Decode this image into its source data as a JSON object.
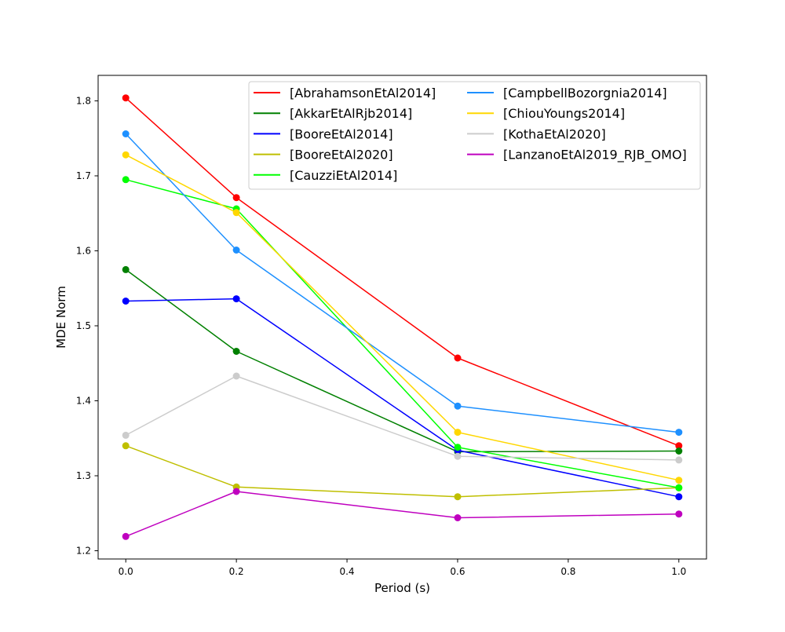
{
  "chart_data": {
    "type": "line",
    "title": "",
    "xlabel": "Period (s)",
    "ylabel": "MDE Norm",
    "xlim": [
      -0.05,
      1.05
    ],
    "ylim": [
      1.189,
      1.834
    ],
    "xticks": [
      0.0,
      0.2,
      0.4,
      0.6,
      0.8,
      1.0
    ],
    "xtick_labels": [
      "0.0",
      "0.2",
      "0.4",
      "0.6",
      "0.8",
      "1.0"
    ],
    "yticks": [
      1.2,
      1.3,
      1.4,
      1.5,
      1.6,
      1.7,
      1.8
    ],
    "ytick_labels": [
      "1.2",
      "1.3",
      "1.4",
      "1.5",
      "1.6",
      "1.7",
      "1.8"
    ],
    "grid": false,
    "legend_placement": "top-right",
    "x": [
      0.0,
      0.2,
      0.6,
      1.0
    ],
    "series": [
      {
        "name": "[AbrahamsonEtAl2014]",
        "color": "#ff0000",
        "values": [
          1.804,
          1.671,
          1.457,
          1.34
        ]
      },
      {
        "name": "[AkkarEtAlRjb2014]",
        "color": "#008000",
        "values": [
          1.575,
          1.466,
          1.332,
          1.333
        ]
      },
      {
        "name": "[BooreEtAl2014]",
        "color": "#0000ff",
        "values": [
          1.533,
          1.536,
          1.334,
          1.272
        ]
      },
      {
        "name": "[BooreEtAl2020]",
        "color": "#bfbf00",
        "values": [
          1.34,
          1.285,
          1.272,
          1.284
        ]
      },
      {
        "name": "[CauzziEtAl2014]",
        "color": "#00ff00",
        "values": [
          1.695,
          1.656,
          1.338,
          1.284
        ]
      },
      {
        "name": "[CampbellBozorgnia2014]",
        "color": "#1e90ff",
        "values": [
          1.756,
          1.601,
          1.393,
          1.358
        ]
      },
      {
        "name": "[ChiouYoungs2014]",
        "color": "#ffd700",
        "values": [
          1.728,
          1.651,
          1.358,
          1.294
        ]
      },
      {
        "name": "[KothaEtAl2020]",
        "color": "#cccccc",
        "values": [
          1.354,
          1.433,
          1.326,
          1.321
        ]
      },
      {
        "name": "[LanzanoEtAl2019_RJB_OMO]",
        "color": "#bf00bf",
        "values": [
          1.219,
          1.279,
          1.244,
          1.249
        ]
      }
    ]
  }
}
